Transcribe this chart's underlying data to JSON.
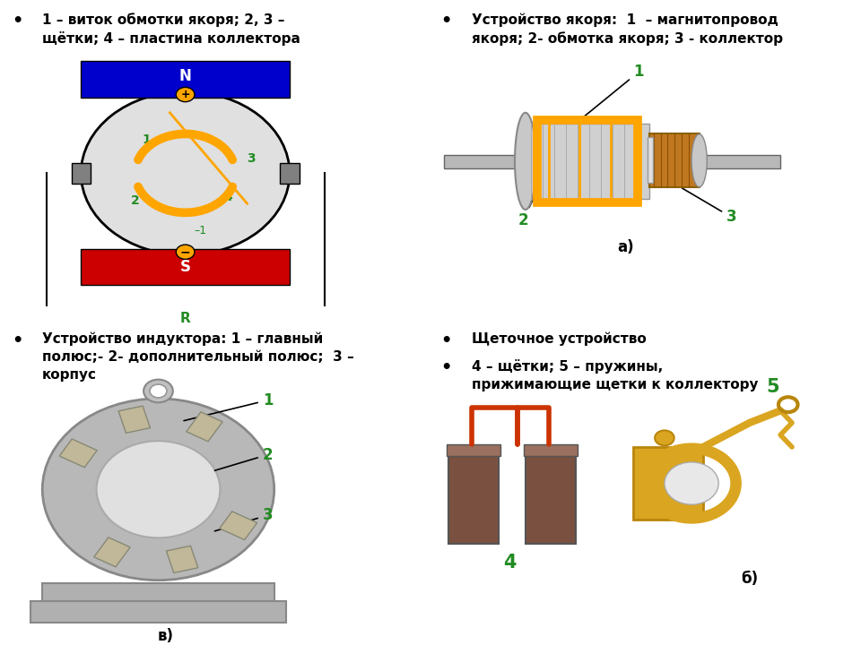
{
  "bg_color": "#ffffff",
  "text_color": "#000000",
  "green_color": "#228B22",
  "text_tl": "1 – виток обмотки якоря; 2, 3 –\nщётки; 4 – пластина коллектора",
  "text_tr": "Устройство якоря:  1  – магнитопровод\nякоря; 2- обмотка якоря; 3 - коллектор",
  "text_bl": "Устройство индуктора: 1 – главный\nполюс;- 2- дополнительный полюс;  3 –\nкорпус",
  "text_br_1": "Щеточное устройство",
  "text_br_2": "4 – щётки; 5 – пружины,\nприжимающие щетки к коллектору",
  "N_color": "#0000cc",
  "S_color": "#cc0000",
  "circle_bg": "#e0e0e0",
  "ring_color": "#FFA500",
  "brush_color": "#808080",
  "plus_color": "#FFA500",
  "font_size_text": 11,
  "font_size_label": 13,
  "font_size_num": 11
}
